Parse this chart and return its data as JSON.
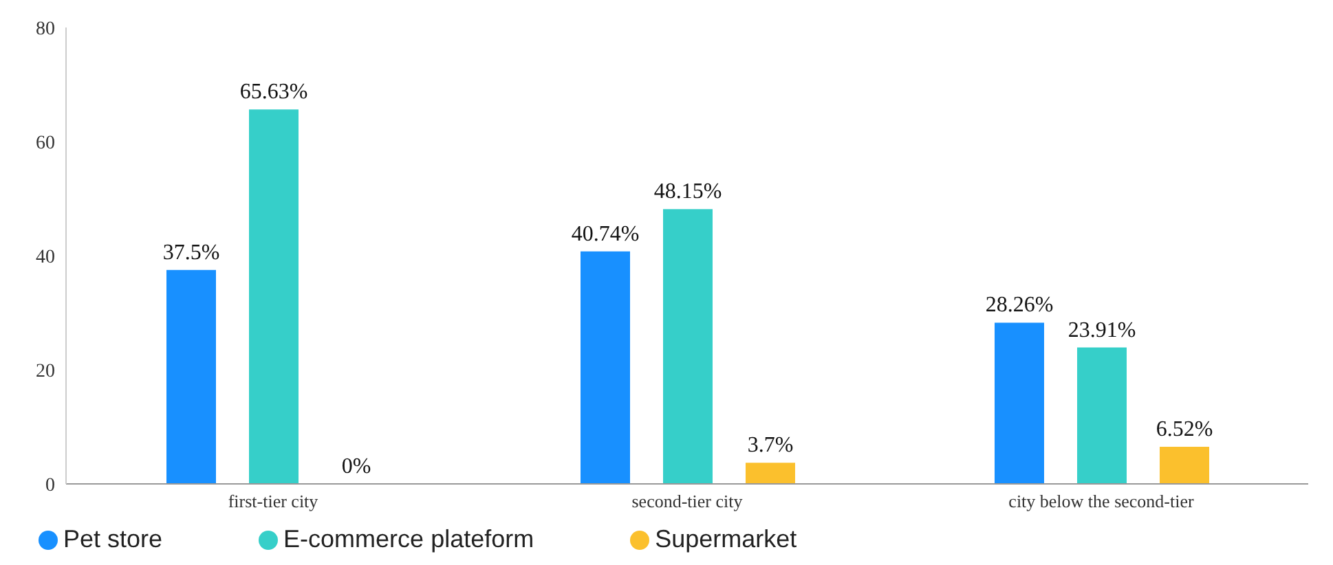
{
  "chart_data": {
    "type": "bar",
    "categories": [
      "first-tier city",
      "second-tier city",
      "city below the second-tier"
    ],
    "series": [
      {
        "name": "Pet store",
        "color": "#1890ff",
        "values": [
          37.5,
          40.74,
          28.26
        ],
        "value_labels": [
          "37.5%",
          "40.74%",
          "28.26%"
        ]
      },
      {
        "name": "E-commerce plateform",
        "color": "#36cfc9",
        "values": [
          65.63,
          48.15,
          23.91
        ],
        "value_labels": [
          "65.63%",
          "48.15%",
          "23.91%"
        ]
      },
      {
        "name": "Supermarket",
        "color": "#fbc02d",
        "values": [
          0,
          3.7,
          6.52
        ],
        "value_labels": [
          "0%",
          "3.7%",
          "6.52%"
        ]
      }
    ],
    "ylim": [
      0,
      80
    ],
    "yticks": [
      0,
      20,
      40,
      60,
      80
    ],
    "grid": false,
    "legend": "bottom left"
  }
}
